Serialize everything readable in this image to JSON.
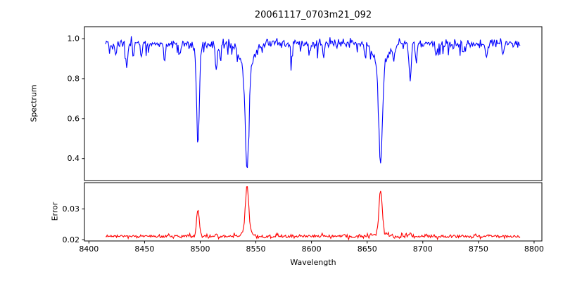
{
  "figure": {
    "title": "20061117_0703m21_092",
    "xlabel": "Wavelength"
  },
  "chart_data": {
    "type": "line",
    "title": "20061117_0703m21_092",
    "xlabel": "Wavelength",
    "xlim": [
      8396,
      8807
    ],
    "x_ticks": [
      8400,
      8450,
      8500,
      8550,
      8600,
      8650,
      8700,
      8750,
      8800
    ],
    "x_tick_labels": [
      "8400",
      "8450",
      "8500",
      "8550",
      "8600",
      "8650",
      "8700",
      "8750",
      "8800"
    ],
    "x_start": 8415,
    "x_end": 8788,
    "x_step": 0.7,
    "noise_seed": 7,
    "panels": [
      {
        "name": "spectrum",
        "ylabel": "Spectrum",
        "color": "#0000ff",
        "ylim": [
          0.29,
          1.06
        ],
        "yticks": [
          0.4,
          0.6,
          0.8,
          1.0
        ],
        "ytick_labels": [
          "0.4",
          "0.6",
          "0.8",
          "1.0"
        ],
        "continuum": 0.975,
        "noise_sigma": 0.012,
        "random_dip_prob": 0.08,
        "random_dip_max": 0.06,
        "absorption_lines": [
          {
            "center": 8498.0,
            "depth": 0.44,
            "width": 1.1,
            "wing_depth": 0.05,
            "wing_width": 3.5
          },
          {
            "center": 8542.1,
            "depth": 0.5,
            "width": 1.6,
            "wing_depth": 0.13,
            "wing_width": 5.5
          },
          {
            "center": 8662.1,
            "depth": 0.48,
            "width": 1.5,
            "wing_depth": 0.13,
            "wing_width": 5.0
          },
          {
            "center": 8424.0,
            "depth": 0.06,
            "width": 0.8
          },
          {
            "center": 8434.0,
            "depth": 0.11,
            "width": 0.9
          },
          {
            "center": 8440.0,
            "depth": 0.05,
            "width": 0.7
          },
          {
            "center": 8447.0,
            "depth": 0.07,
            "width": 0.8
          },
          {
            "center": 8468.0,
            "depth": 0.1,
            "width": 0.8
          },
          {
            "center": 8482.0,
            "depth": 0.05,
            "width": 0.7
          },
          {
            "center": 8514.5,
            "depth": 0.13,
            "width": 0.9
          },
          {
            "center": 8518.0,
            "depth": 0.06,
            "width": 0.7
          },
          {
            "center": 8582.0,
            "depth": 0.07,
            "width": 0.8
          },
          {
            "center": 8598.0,
            "depth": 0.05,
            "width": 0.7
          },
          {
            "center": 8611.0,
            "depth": 0.06,
            "width": 0.8
          },
          {
            "center": 8648.0,
            "depth": 0.05,
            "width": 0.7
          },
          {
            "center": 8674.0,
            "depth": 0.07,
            "width": 0.8
          },
          {
            "center": 8688.5,
            "depth": 0.19,
            "width": 0.9
          },
          {
            "center": 8694.0,
            "depth": 0.1,
            "width": 0.8
          },
          {
            "center": 8712.0,
            "depth": 0.07,
            "width": 0.8
          },
          {
            "center": 8736.0,
            "depth": 0.05,
            "width": 0.7
          },
          {
            "center": 8757.0,
            "depth": 0.08,
            "width": 0.8
          },
          {
            "center": 8772.0,
            "depth": 0.05,
            "width": 0.7
          }
        ]
      },
      {
        "name": "error",
        "ylabel": "Error",
        "color": "#ff0000",
        "ylim": [
          0.0196,
          0.0385
        ],
        "yticks": [
          0.02,
          0.03
        ],
        "ytick_labels": [
          "0.02",
          "0.03"
        ],
        "baseline": 0.0211,
        "noise_sigma": 0.0003,
        "random_spike_prob": 0.05,
        "random_spike_max": 0.0009,
        "emission_spikes": [
          {
            "center": 8498.0,
            "amp": 0.0088,
            "width": 1.2
          },
          {
            "center": 8542.1,
            "amp": 0.015,
            "width": 1.5,
            "wing_amp": 0.0015,
            "wing_width": 4.0
          },
          {
            "center": 8662.1,
            "amp": 0.014,
            "width": 1.4,
            "wing_amp": 0.0012,
            "wing_width": 4.0
          },
          {
            "center": 8688.5,
            "amp": 0.0012,
            "width": 0.9
          },
          {
            "center": 8514.5,
            "amp": 0.0008,
            "width": 0.9
          },
          {
            "center": 8434.0,
            "amp": 0.0006,
            "width": 0.8
          }
        ]
      }
    ]
  }
}
